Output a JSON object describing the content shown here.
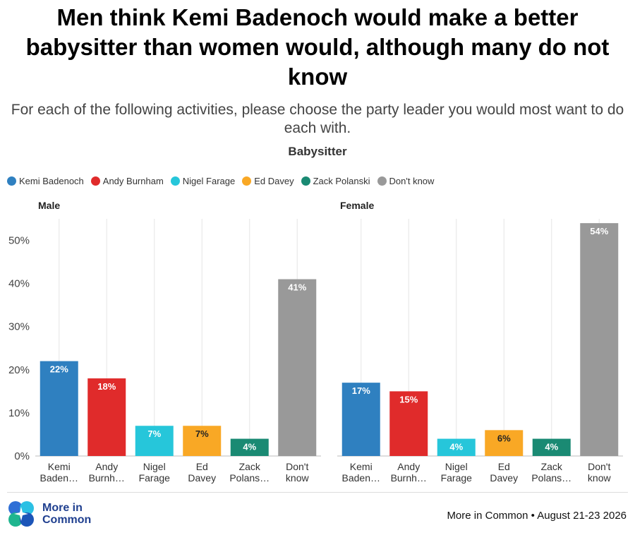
{
  "header": {
    "title": "Men think Kemi Badenoch would make a better babysitter than women would, although many do not know",
    "subtitle": "For each of the following activities, please choose the party leader you would most want to do each with."
  },
  "footer": {
    "logo_line1": "More in",
    "logo_line2": "Common",
    "source": "More in Common • August 21-23 2026"
  },
  "chart_data": {
    "type": "bar",
    "title": "Babysitter",
    "legend_position": "top-left",
    "grid": true,
    "ylim": [
      0,
      55
    ],
    "yticks": [
      "0%",
      "10%",
      "20%",
      "30%",
      "40%",
      "50%"
    ],
    "ytick_values": [
      0,
      10,
      20,
      30,
      40,
      50
    ],
    "series_legend": [
      {
        "name": "Kemi Badenoch",
        "color": "#2f80c0"
      },
      {
        "name": "Andy Burnham",
        "color": "#e02b2b"
      },
      {
        "name": "Nigel Farage",
        "color": "#26c6da"
      },
      {
        "name": "Ed Davey",
        "color": "#f9a825"
      },
      {
        "name": "Zack Polanski",
        "color": "#1a8a73"
      },
      {
        "name": "Don't know",
        "color": "#999999"
      }
    ],
    "categories": [
      [
        "Kemi",
        "Baden…"
      ],
      [
        "Andy",
        "Burnh…"
      ],
      [
        "Nigel",
        "Farage"
      ],
      [
        "Ed",
        "Davey"
      ],
      [
        "Zack",
        "Polans…"
      ],
      [
        "Don't",
        "know"
      ]
    ],
    "panels": [
      {
        "name": "Male",
        "values": [
          22,
          18,
          7,
          7,
          4,
          41
        ],
        "labels": [
          "22%",
          "18%",
          "7%",
          "7%",
          "4%",
          "41%"
        ]
      },
      {
        "name": "Female",
        "values": [
          17,
          15,
          4,
          6,
          4,
          54
        ],
        "labels": [
          "17%",
          "15%",
          "4%",
          "6%",
          "4%",
          "54%"
        ]
      }
    ]
  }
}
